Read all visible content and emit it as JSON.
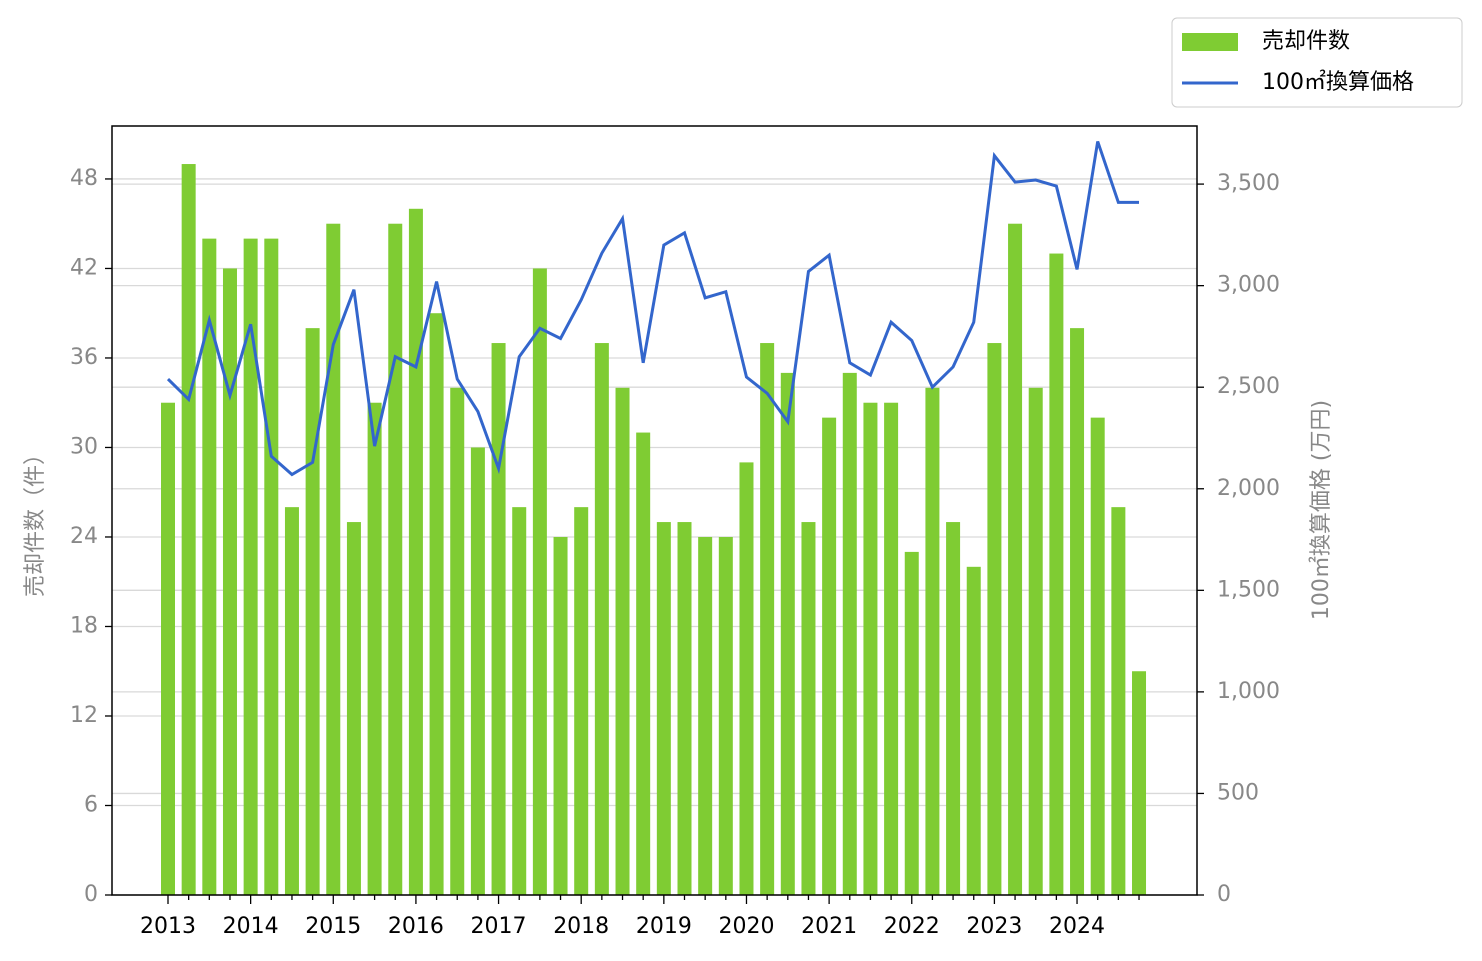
{
  "chart_data": {
    "type": "bar",
    "categories": [
      "2013",
      null,
      null,
      null,
      "2014",
      null,
      null,
      null,
      "2015",
      null,
      null,
      null,
      "2016",
      null,
      null,
      null,
      "2017",
      null,
      null,
      null,
      "2018",
      null,
      null,
      null,
      "2019",
      null,
      null,
      null,
      "2020",
      null,
      null,
      null,
      "2021",
      null,
      null,
      null,
      "2022",
      null,
      null,
      null,
      "2023",
      null,
      null,
      null,
      "2024",
      null,
      null,
      null
    ],
    "series": [
      {
        "name": "売却件数",
        "type": "bar",
        "color": "#7fcc33",
        "values": [
          33,
          49,
          44,
          42,
          44,
          44,
          26,
          38,
          45,
          25,
          33,
          45,
          46,
          39,
          34,
          30,
          37,
          26,
          42,
          24,
          26,
          37,
          34,
          31,
          25,
          25,
          24,
          24,
          29,
          37,
          35,
          25,
          32,
          35,
          33,
          33,
          23,
          34,
          25,
          22,
          37,
          45,
          34,
          43,
          38,
          32,
          26,
          15
        ]
      },
      {
        "name": "100㎡換算価格",
        "type": "line",
        "axis": "y2",
        "color": "#3366cc",
        "values": [
          2540,
          2440,
          2830,
          2460,
          2810,
          2160,
          2070,
          2130,
          2710,
          2980,
          2210,
          2650,
          2600,
          3020,
          2540,
          2380,
          2100,
          2650,
          2790,
          2740,
          2930,
          3160,
          3330,
          2620,
          3200,
          3260,
          2940,
          2970,
          2550,
          2470,
          2330,
          3070,
          3150,
          2620,
          2560,
          2820,
          2730,
          2500,
          2600,
          2820,
          3640,
          3510,
          3520,
          3490,
          3080,
          3710,
          3410,
          3410
        ]
      }
    ],
    "ylabel": "売却件数（件）",
    "y2label": "100㎡換算価格 (万円)",
    "ylim": [
      0,
      51.55
    ],
    "yticks": [
      0,
      6,
      12,
      18,
      24,
      30,
      36,
      42,
      48
    ],
    "y2lim": [
      0,
      3786
    ],
    "y2ticks": [
      0,
      500,
      {
        "value": 1000,
        "label": "1,000"
      },
      {
        "value": 1500,
        "label": "1,500"
      },
      {
        "value": 2000,
        "label": "2,000"
      },
      {
        "value": 2500,
        "label": "2,500"
      },
      {
        "value": 3000,
        "label": "3,000"
      },
      {
        "value": 3500,
        "label": "3,500"
      }
    ],
    "grid": true,
    "y2grid": true,
    "legend": "upper right outside"
  }
}
